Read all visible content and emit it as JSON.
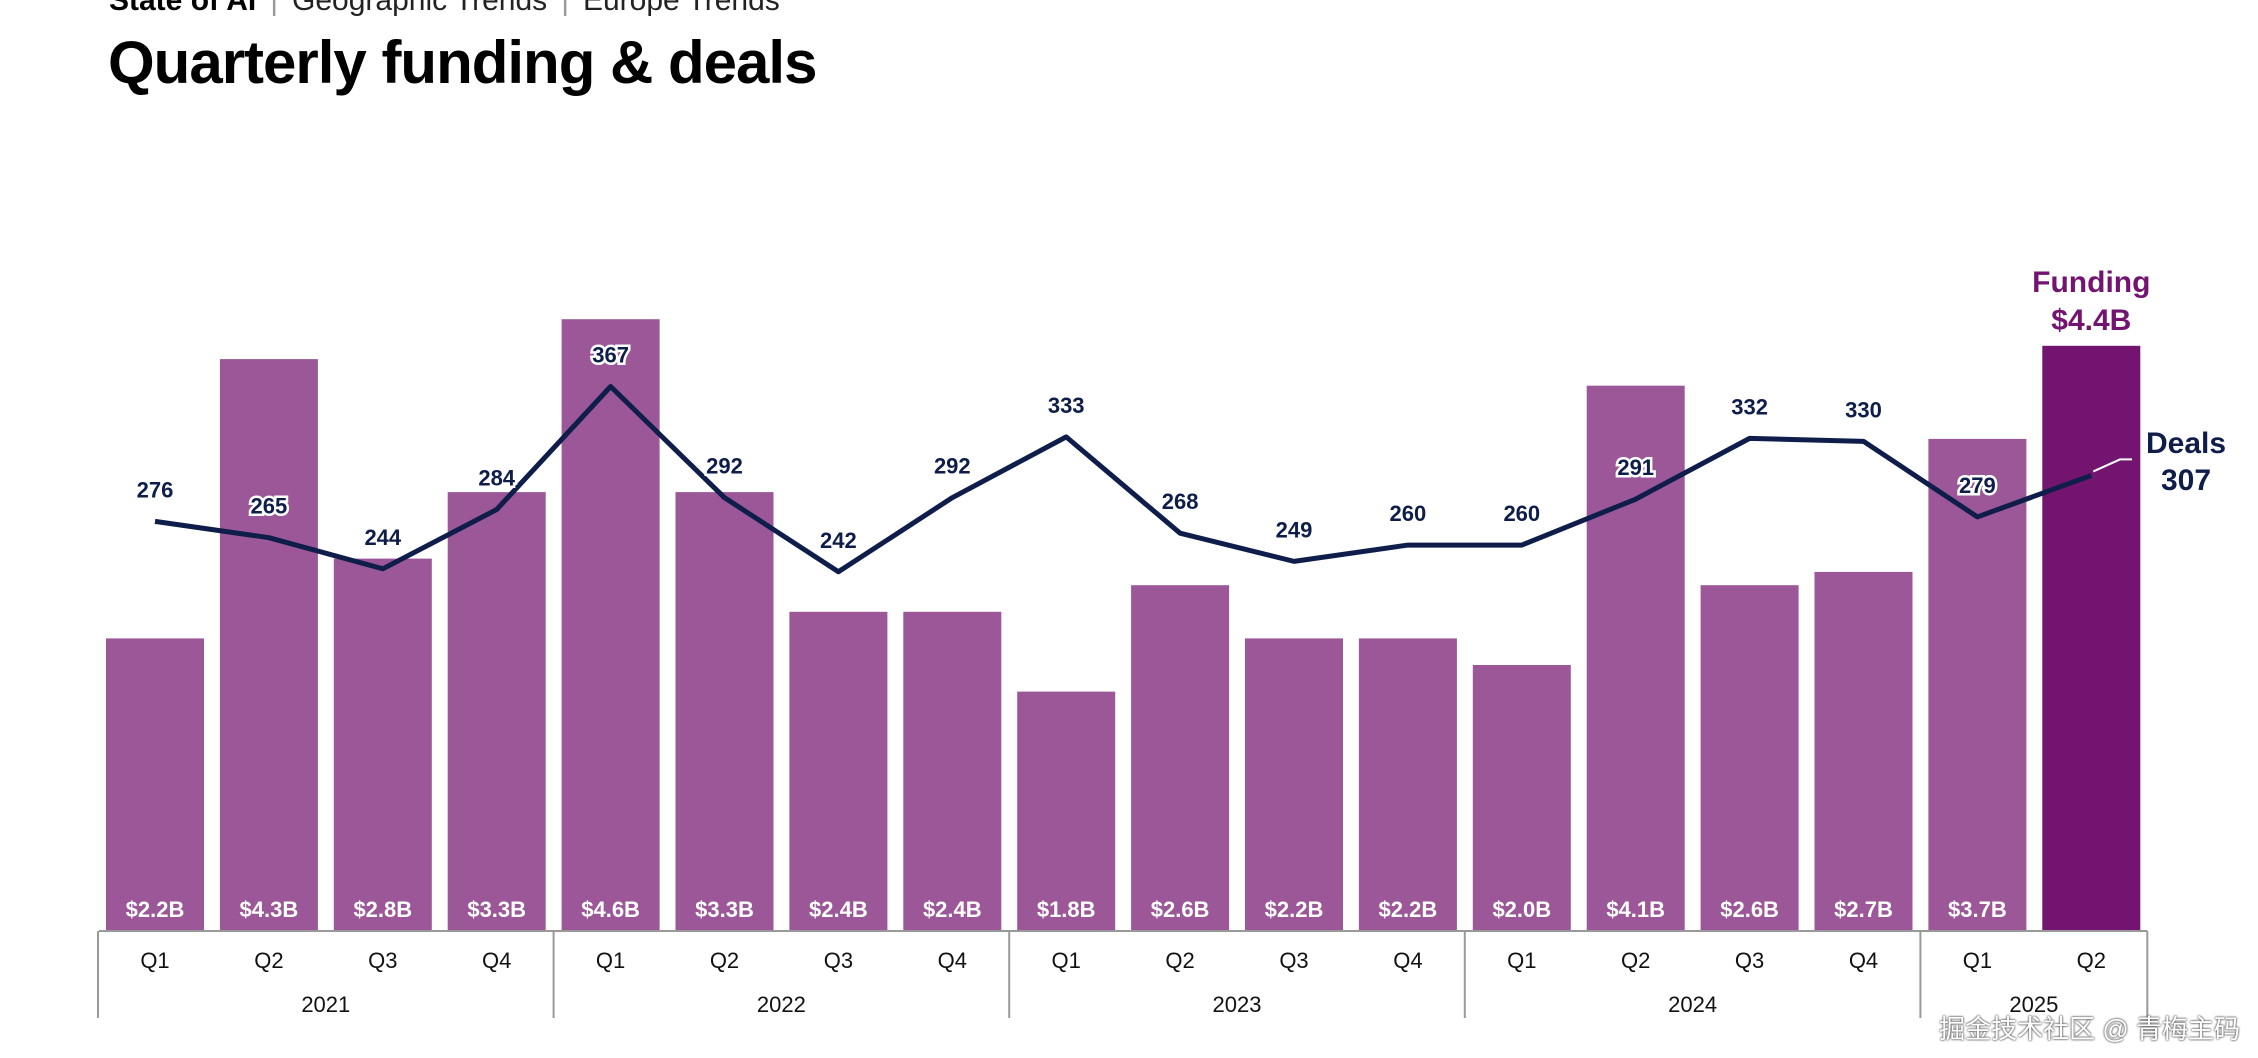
{
  "breadcrumb": [
    "State of AI",
    "Geographic Trends",
    "Europe Trends"
  ],
  "title": "Quarterly funding & deals",
  "watermark": "掘金技术社区 @ 青梅主码",
  "colors": {
    "bar": "#9b5797",
    "bar_highlight": "#721470",
    "line": "#0f1d4a",
    "funding_label": "#721470"
  },
  "chart_data": {
    "type": "bar+line",
    "title": "Quarterly funding & deals",
    "categories": [
      "Q1",
      "Q2",
      "Q3",
      "Q4",
      "Q1",
      "Q2",
      "Q3",
      "Q4",
      "Q1",
      "Q2",
      "Q3",
      "Q4",
      "Q1",
      "Q2",
      "Q3",
      "Q4",
      "Q1",
      "Q2"
    ],
    "years": [
      {
        "label": "2021",
        "quarters": 4
      },
      {
        "label": "2022",
        "quarters": 4
      },
      {
        "label": "2023",
        "quarters": 4
      },
      {
        "label": "2024",
        "quarters": 4
      },
      {
        "label": "2025",
        "quarters": 2
      }
    ],
    "series": [
      {
        "name": "Funding",
        "type": "bar",
        "unit": "$B",
        "values": [
          2.2,
          4.3,
          2.8,
          3.3,
          4.6,
          3.3,
          2.4,
          2.4,
          1.8,
          2.6,
          2.2,
          2.2,
          2.0,
          4.1,
          2.6,
          2.7,
          3.7,
          4.4
        ],
        "labels": [
          "$2.2B",
          "$4.3B",
          "$2.8B",
          "$3.3B",
          "$4.6B",
          "$3.3B",
          "$2.4B",
          "$2.4B",
          "$1.8B",
          "$2.6B",
          "$2.2B",
          "$2.2B",
          "$2.0B",
          "$4.1B",
          "$2.6B",
          "$2.7B",
          "$3.7B",
          ""
        ]
      },
      {
        "name": "Deals",
        "type": "line",
        "values": [
          276,
          265,
          244,
          284,
          367,
          292,
          242,
          292,
          333,
          268,
          249,
          260,
          260,
          291,
          332,
          330,
          279,
          307
        ],
        "labels": [
          "276",
          "265",
          "244",
          "284",
          "367",
          "292",
          "242",
          "292",
          "333",
          "268",
          "249",
          "260",
          "260",
          "291",
          "332",
          "330",
          "279",
          ""
        ]
      }
    ],
    "callouts": {
      "funding_name": "Funding",
      "funding_value": "$4.4B",
      "deals_name": "Deals",
      "deals_value": "307"
    },
    "grid": false
  }
}
